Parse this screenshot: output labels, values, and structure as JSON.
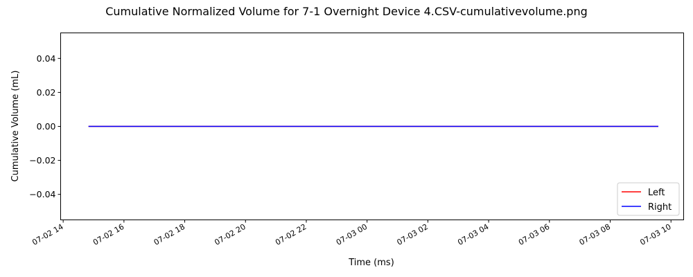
{
  "chart_data": {
    "type": "line",
    "title": "Cumulative Normalized Volume for 7-1 Overnight Device 4.CSV-cumulativevolume.png",
    "xlabel": "Time (ms)",
    "ylabel": "Cumulative Volume (mL)",
    "xlim": [
      "2025-07-02T13:55",
      "2025-07-03T10:25"
    ],
    "ylim": [
      -0.055,
      0.055
    ],
    "x_ticks": [
      {
        "t": "2025-07-02T14:00",
        "label": "07-02 14"
      },
      {
        "t": "2025-07-02T16:00",
        "label": "07-02 16"
      },
      {
        "t": "2025-07-02T18:00",
        "label": "07-02 18"
      },
      {
        "t": "2025-07-02T20:00",
        "label": "07-02 20"
      },
      {
        "t": "2025-07-02T22:00",
        "label": "07-02 22"
      },
      {
        "t": "2025-07-03T00:00",
        "label": "07-03 00"
      },
      {
        "t": "2025-07-03T02:00",
        "label": "07-03 02"
      },
      {
        "t": "2025-07-03T04:00",
        "label": "07-03 04"
      },
      {
        "t": "2025-07-03T06:00",
        "label": "07-03 06"
      },
      {
        "t": "2025-07-03T08:00",
        "label": "07-03 08"
      },
      {
        "t": "2025-07-03T10:00",
        "label": "07-03 10"
      }
    ],
    "y_ticks": [
      {
        "v": 0.04,
        "label": "0.04"
      },
      {
        "v": 0.02,
        "label": "0.02"
      },
      {
        "v": 0.0,
        "label": "0.00"
      },
      {
        "v": -0.02,
        "label": "−0.02"
      },
      {
        "v": -0.04,
        "label": "−0.04"
      }
    ],
    "series": [
      {
        "name": "Left",
        "color": "#ff0000",
        "x": [
          "2025-07-02T14:50",
          "2025-07-03T09:35"
        ],
        "values": [
          0,
          0
        ]
      },
      {
        "name": "Right",
        "color": "#0000ff",
        "x": [
          "2025-07-02T14:50",
          "2025-07-03T09:35"
        ],
        "values": [
          0,
          0
        ]
      }
    ],
    "grid": false,
    "legend_position": "lower-right"
  }
}
